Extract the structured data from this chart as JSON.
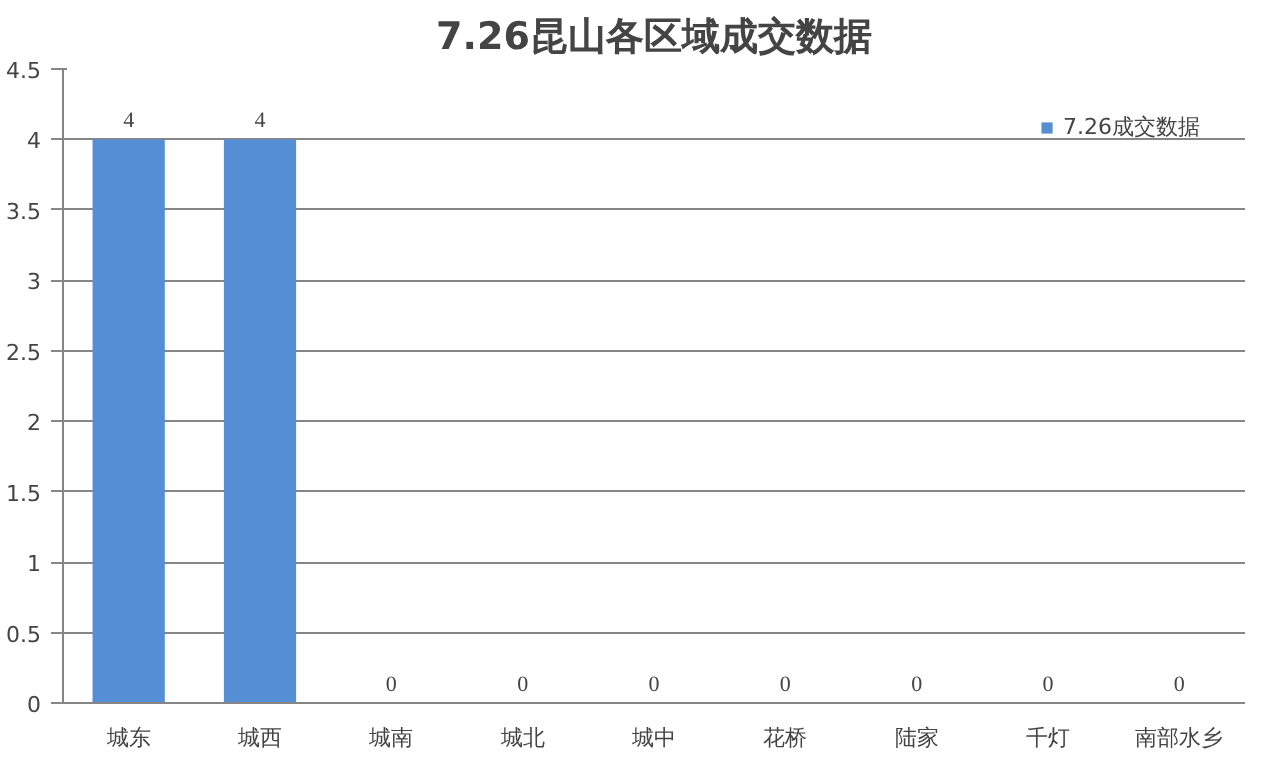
{
  "chart_data": {
    "type": "bar",
    "title": "7.26昆山各区域成交数据",
    "categories": [
      "城东",
      "城西",
      "城南",
      "城北",
      "城中",
      "花桥",
      "陆家",
      "千灯",
      "南部水乡"
    ],
    "series": [
      {
        "name": "7.26成交数据",
        "color": "#558ed5",
        "values": [
          4,
          4,
          0,
          0,
          0,
          0,
          0,
          0,
          0
        ]
      }
    ],
    "ylim": [
      0,
      4.5
    ],
    "yticks": [
      0,
      0.5,
      1,
      1.5,
      2,
      2.5,
      3,
      3.5,
      4,
      4.5
    ],
    "grid": "y",
    "legend": "top right",
    "data_labels": true
  }
}
